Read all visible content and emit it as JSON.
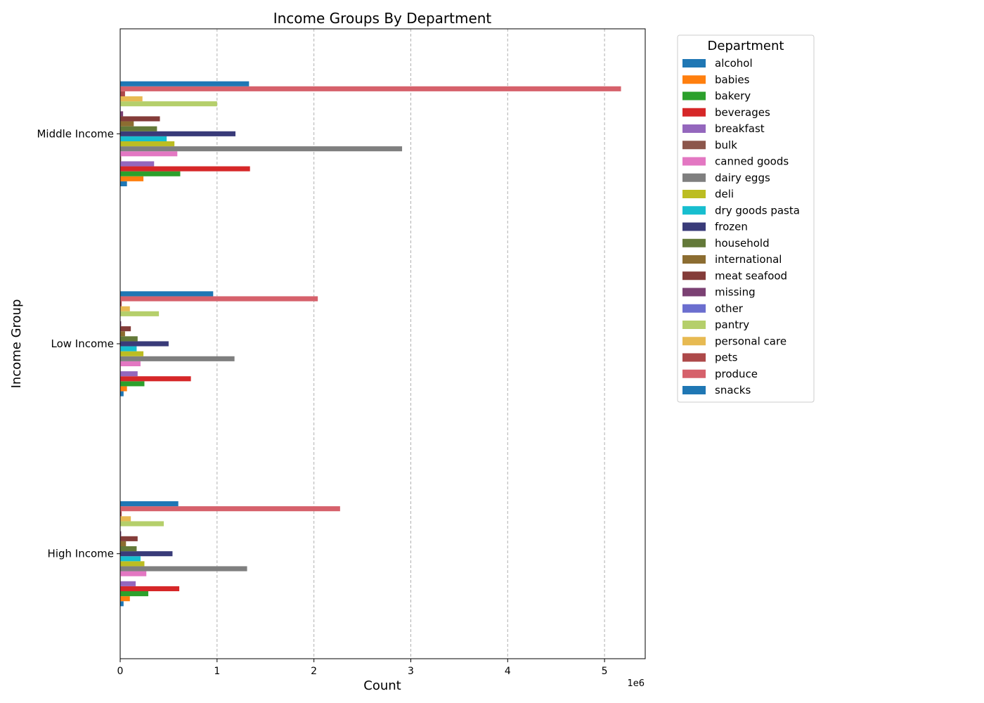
{
  "chart_data": {
    "type": "bar",
    "orientation": "horizontal",
    "title": "Income Groups By Department",
    "xlabel": "Count",
    "ylabel": "Income Group",
    "x_offset_label": "1e6",
    "x_scale": 1000000,
    "xlim": [
      0,
      5420000
    ],
    "x_ticks": [
      0,
      1000000,
      2000000,
      3000000,
      4000000,
      5000000
    ],
    "x_tick_labels": [
      "0",
      "1",
      "2",
      "3",
      "4",
      "5"
    ],
    "grid": "x dashed",
    "legend_title": "Department",
    "legend_position": "outside-right",
    "categories": [
      "Middle Income",
      "Low Income",
      "High Income"
    ],
    "series": [
      {
        "name": "alcohol",
        "color": "#1f77b4",
        "values": [
          70000,
          35000,
          35000
        ]
      },
      {
        "name": "babies",
        "color": "#ff7f0e",
        "values": [
          240000,
          70000,
          100000
        ]
      },
      {
        "name": "bakery",
        "color": "#2ca02c",
        "values": [
          620000,
          250000,
          290000
        ]
      },
      {
        "name": "beverages",
        "color": "#d62728",
        "values": [
          1340000,
          730000,
          610000
        ]
      },
      {
        "name": "breakfast",
        "color": "#9467bd",
        "values": [
          350000,
          180000,
          160000
        ]
      },
      {
        "name": "bulk",
        "color": "#8c564b",
        "values": [
          10000,
          5000,
          5000
        ]
      },
      {
        "name": "canned goods",
        "color": "#e377c2",
        "values": [
          590000,
          210000,
          270000
        ]
      },
      {
        "name": "dairy eggs",
        "color": "#7f7f7f",
        "values": [
          2910000,
          1180000,
          1310000
        ]
      },
      {
        "name": "deli",
        "color": "#bcbd22",
        "values": [
          560000,
          240000,
          250000
        ]
      },
      {
        "name": "dry goods pasta",
        "color": "#17becf",
        "values": [
          480000,
          170000,
          210000
        ]
      },
      {
        "name": "frozen",
        "color": "#393b79",
        "values": [
          1190000,
          500000,
          540000
        ]
      },
      {
        "name": "household",
        "color": "#637939",
        "values": [
          380000,
          180000,
          170000
        ]
      },
      {
        "name": "international",
        "color": "#8c6d31",
        "values": [
          140000,
          50000,
          60000
        ]
      },
      {
        "name": "meat seafood",
        "color": "#843c39",
        "values": [
          410000,
          110000,
          180000
        ]
      },
      {
        "name": "missing",
        "color": "#7b4173",
        "values": [
          30000,
          10000,
          10000
        ]
      },
      {
        "name": "other",
        "color": "#6b6ecf",
        "values": [
          5000,
          3000,
          3000
        ]
      },
      {
        "name": "pantry",
        "color": "#b5cf6b",
        "values": [
          1000000,
          400000,
          450000
        ]
      },
      {
        "name": "personal care",
        "color": "#e7ba52",
        "values": [
          230000,
          100000,
          110000
        ]
      },
      {
        "name": "pets",
        "color": "#ad494a",
        "values": [
          50000,
          15000,
          15000
        ]
      },
      {
        "name": "produce",
        "color": "#d6616b",
        "values": [
          5170000,
          2040000,
          2270000
        ]
      },
      {
        "name": "snacks",
        "color": "#1f77b4",
        "values": [
          1330000,
          960000,
          600000
        ]
      }
    ]
  }
}
